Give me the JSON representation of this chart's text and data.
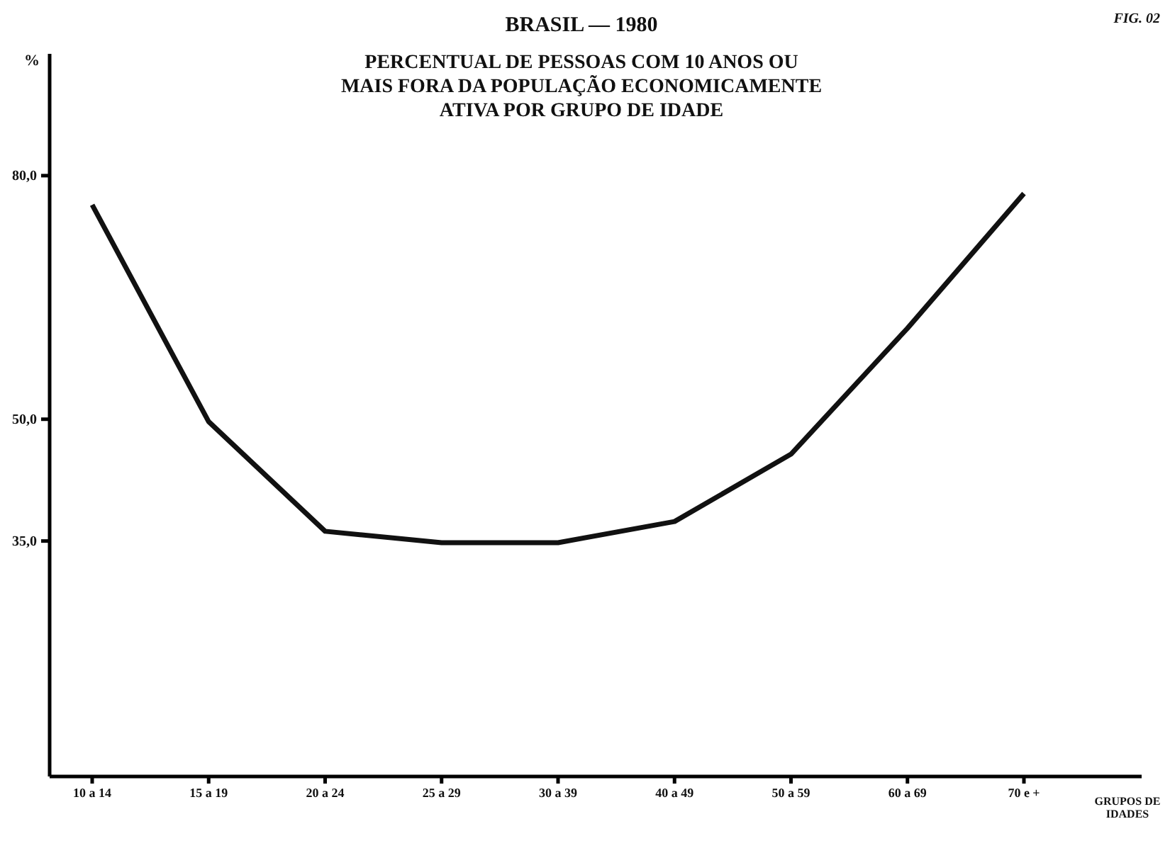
{
  "chart_data": {
    "type": "line",
    "title": "BRASIL — 1980",
    "subtitle": "PERCENTUAL DE PESSOAS COM 10 ANOS OU\nMAIS FORA DA POPULAÇÃO ECONOMICAMENTE\nATIVA POR GRUPO DE IDADE",
    "ylabel": "%",
    "xlabel": "GRUPOS DE IDADES",
    "annotations": [
      "FIG. 02"
    ],
    "categories": [
      "10 a 14",
      "15 a 19",
      "20 a 24",
      "25 a 29",
      "30 a 39",
      "40 a 49",
      "50 a 59",
      "60 a 69",
      "70 e +"
    ],
    "series": [
      {
        "color": "#111111",
        "values": [
          76.4,
          49.7,
          36.2,
          34.8,
          34.8,
          37.4,
          45.7,
          61.2,
          77.8
        ]
      }
    ],
    "ylim": [
      6,
      95
    ],
    "yticks": [
      {
        "value": 35,
        "label": "35,0"
      },
      {
        "value": 50,
        "label": "50,0"
      },
      {
        "value": 80,
        "label": "80,0"
      }
    ],
    "grid": false,
    "legend": false,
    "marker": "none",
    "line_style": "solid"
  }
}
